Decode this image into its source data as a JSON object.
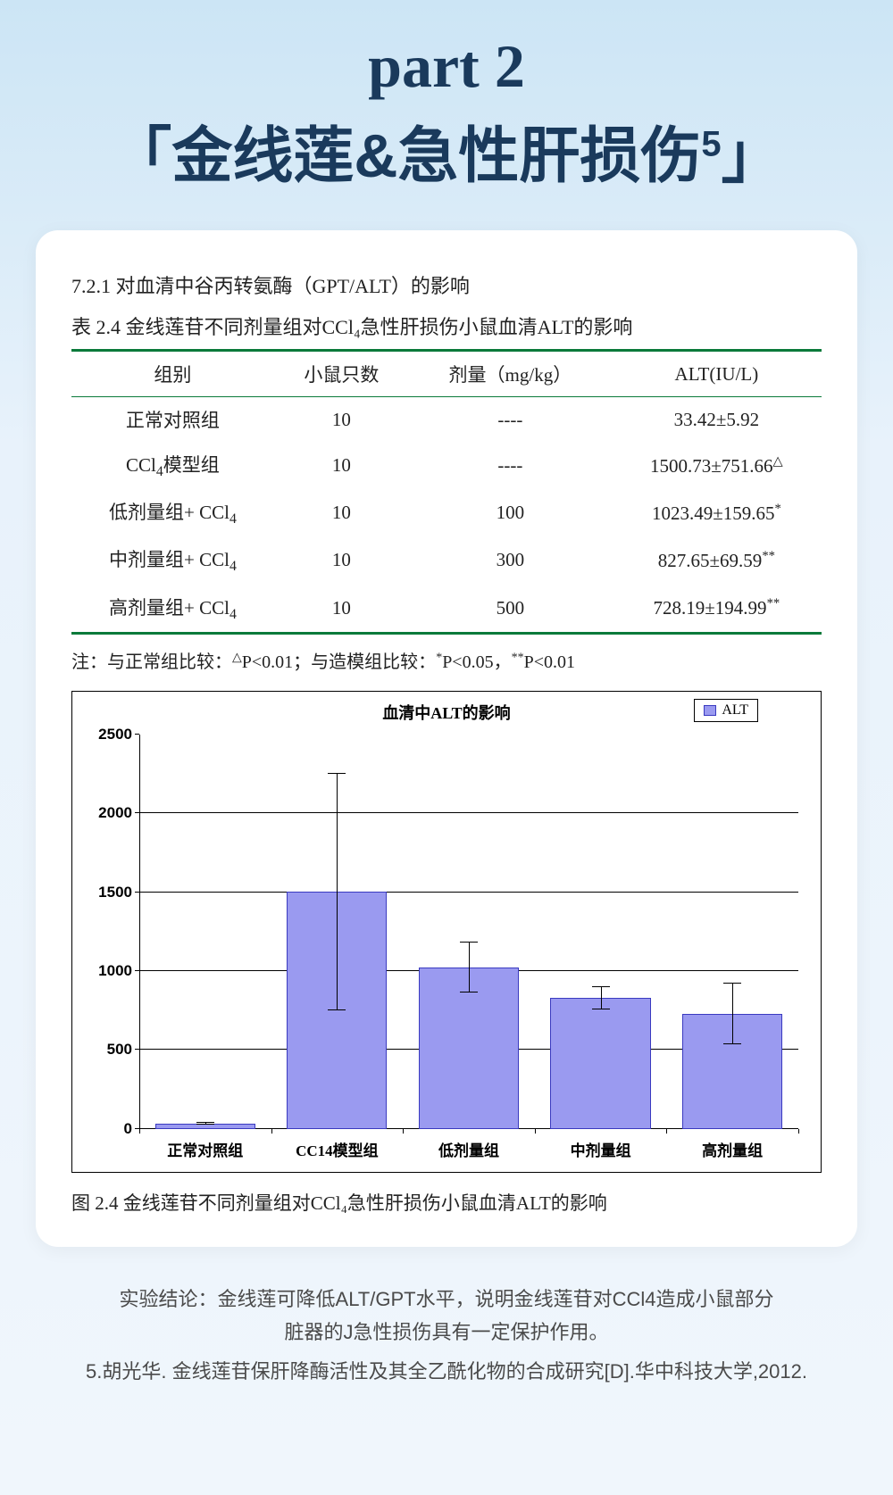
{
  "header": {
    "part_label": "part 2",
    "title_open": "「",
    "title_main": "金线莲&急性肝损伤",
    "title_sup": "5",
    "title_close": "」"
  },
  "section": {
    "heading": "7.2.1 对血清中谷丙转氨酶（GPT/ALT）的影响",
    "table_title": "表 2.4 金线莲苷不同剂量组对CCl₄急性肝损伤小鼠血清ALT的影响"
  },
  "table": {
    "columns": [
      "组别",
      "小鼠只数",
      "剂量（mg/kg）",
      "ALT(IU/L)"
    ],
    "rows": [
      {
        "group": "正常对照组",
        "n": "10",
        "dose": "----",
        "alt": "33.42±5.92",
        "mark": ""
      },
      {
        "group": "CCl₄模型组",
        "n": "10",
        "dose": "----",
        "alt": "1500.73±751.66",
        "mark": "△"
      },
      {
        "group": "低剂量组+ CCl₄",
        "n": "10",
        "dose": "100",
        "alt": "1023.49±159.65",
        "mark": "*"
      },
      {
        "group": "中剂量组+ CCl₄",
        "n": "10",
        "dose": "300",
        "alt": "827.65±69.59",
        "mark": "**"
      },
      {
        "group": "高剂量组+ CCl₄",
        "n": "10",
        "dose": "500",
        "alt": "728.19±194.99",
        "mark": "**"
      }
    ],
    "note": "注：与正常组比较：△P<0.01；与造模组比较：*P<0.05，**P<0.01",
    "border_color": "#0a7a3a"
  },
  "chart": {
    "type": "bar",
    "title": "血清中ALT的影响",
    "legend_label": "ALT",
    "categories": [
      "正常对照组",
      "CC14模型组",
      "低剂量组",
      "中剂量组",
      "高剂量组"
    ],
    "values": [
      33.42,
      1500.73,
      1023.49,
      827.65,
      728.19
    ],
    "errors": [
      5.92,
      751.66,
      159.65,
      69.59,
      194.99
    ],
    "ylim": [
      0,
      2500
    ],
    "ytick_step": 500,
    "bar_fill": "#9a9af0",
    "bar_border": "#3a3ac0",
    "background_color": "#ffffff",
    "axis_color": "#000000",
    "label_fontsize": 17,
    "title_fontsize": 18
  },
  "figure_caption": "图 2.4 金线莲苷不同剂量组对CCl₄急性肝损伤小鼠血清ALT的影响",
  "footer": {
    "conclusion_l1": "实验结论：金线莲可降低ALT/GPT水平，说明金线莲苷对CCl4造成小鼠部分",
    "conclusion_l2": "脏器的J急性损伤具有一定保护作用。",
    "citation": "5.胡光华. 金线莲苷保肝降酶活性及其全乙酰化物的合成研究[D].华中科技大学,2012."
  }
}
